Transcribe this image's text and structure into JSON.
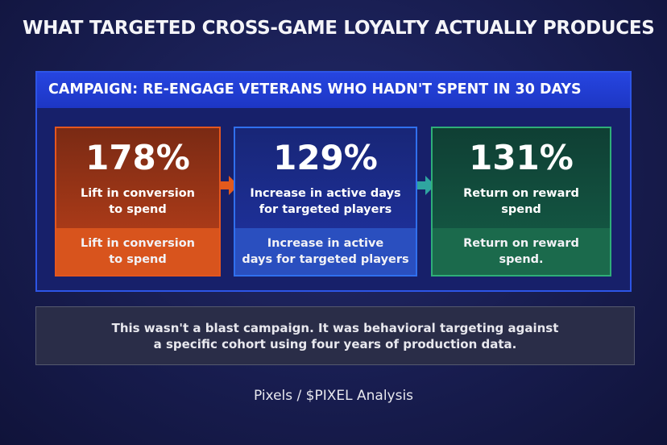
{
  "title": "WHAT TARGETED CROSS-GAME LOYALTY ACTUALLY PRODUCES",
  "campaign": {
    "header": "CAMPAIGN: RE-ENGAGE VETERANS WHO HADN'T SPENT IN 30 DAYS",
    "metrics": [
      {
        "value": "178%",
        "label": [
          "Lift in conversion",
          "to spend"
        ],
        "detail": [
          "Lift in conversion",
          "to spend"
        ]
      },
      {
        "value": "129%",
        "label": [
          "Increase in active days",
          "for targeted players"
        ],
        "detail": [
          "Increase in active",
          "days for targeted players"
        ]
      },
      {
        "value": "131%",
        "label": [
          "Return on reward",
          "spend"
        ],
        "detail": [
          "Return on reward",
          "spend."
        ]
      }
    ]
  },
  "note": [
    "This wasn't a blast campaign. It was behavioral targeting against",
    "a specific cohort using four years of production data."
  ],
  "footer": "Pixels / $PIXEL Analysis"
}
